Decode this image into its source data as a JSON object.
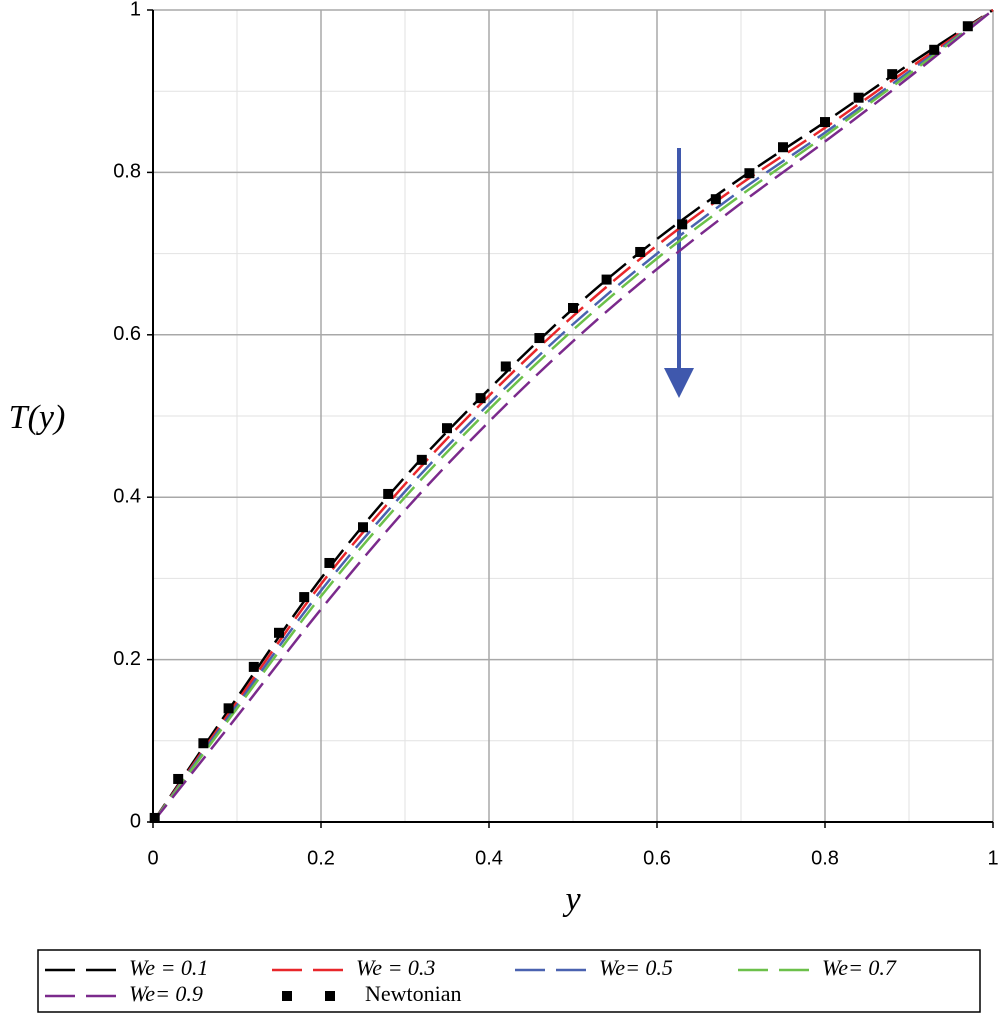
{
  "chart_data": {
    "type": "line",
    "xlabel": "y",
    "ylabel": "T(y)",
    "xlim": [
      0,
      1
    ],
    "ylim": [
      0,
      1
    ],
    "xticks": [
      0,
      0.2,
      0.4,
      0.6,
      0.8,
      1
    ],
    "yticks": [
      0,
      0.2,
      0.4,
      0.6,
      0.8,
      1
    ],
    "xminor": [
      0.1,
      0.3,
      0.5,
      0.7,
      0.9
    ],
    "yminor": [
      0.1,
      0.3,
      0.5,
      0.7,
      0.9
    ],
    "grid": true,
    "legend": "bottom",
    "series": [
      {
        "name": "We = 0.1",
        "color": "#000000",
        "dash": true,
        "x": [
          0,
          0.1,
          0.2,
          0.3,
          0.4,
          0.5,
          0.6,
          0.7,
          0.8,
          0.9,
          1
        ],
        "values": [
          0,
          0.153,
          0.3,
          0.425,
          0.533,
          0.632,
          0.718,
          0.793,
          0.862,
          0.933,
          1
        ]
      },
      {
        "name": "We = 0.3",
        "color": "#e8262a",
        "dash": true,
        "x": [
          0,
          0.1,
          0.2,
          0.3,
          0.4,
          0.5,
          0.6,
          0.7,
          0.8,
          0.9,
          1
        ],
        "values": [
          0,
          0.148,
          0.293,
          0.416,
          0.525,
          0.623,
          0.71,
          0.786,
          0.855,
          0.928,
          1
        ]
      },
      {
        "name": "We= 0.5",
        "color": "#4a62b0",
        "dash": true,
        "x": [
          0,
          0.1,
          0.2,
          0.3,
          0.4,
          0.5,
          0.6,
          0.7,
          0.8,
          0.9,
          1
        ],
        "values": [
          0,
          0.144,
          0.285,
          0.407,
          0.515,
          0.613,
          0.7,
          0.778,
          0.849,
          0.924,
          1
        ]
      },
      {
        "name": "We= 0.7",
        "color": "#6cc04a",
        "dash": true,
        "x": [
          0,
          0.1,
          0.2,
          0.3,
          0.4,
          0.5,
          0.6,
          0.7,
          0.8,
          0.9,
          1
        ],
        "values": [
          0,
          0.14,
          0.278,
          0.4,
          0.508,
          0.606,
          0.694,
          0.772,
          0.845,
          0.921,
          1
        ]
      },
      {
        "name": "We= 0.9",
        "color": "#7b2a8c",
        "dash": true,
        "x": [
          0,
          0.1,
          0.2,
          0.3,
          0.4,
          0.5,
          0.6,
          0.7,
          0.8,
          0.9,
          1
        ],
        "values": [
          0,
          0.13,
          0.262,
          0.384,
          0.493,
          0.592,
          0.681,
          0.762,
          0.838,
          0.917,
          1
        ]
      },
      {
        "name": "Newtonian",
        "color": "#000000",
        "marker": "square",
        "x": [
          0.002,
          0.03,
          0.06,
          0.09,
          0.12,
          0.15,
          0.18,
          0.21,
          0.25,
          0.28,
          0.32,
          0.35,
          0.39,
          0.42,
          0.46,
          0.5,
          0.54,
          0.58,
          0.63,
          0.67,
          0.71,
          0.75,
          0.8,
          0.84,
          0.88,
          0.93,
          0.97
        ],
        "values": [
          0.005,
          0.053,
          0.097,
          0.14,
          0.191,
          0.233,
          0.277,
          0.319,
          0.363,
          0.404,
          0.446,
          0.485,
          0.522,
          0.561,
          0.596,
          0.633,
          0.668,
          0.702,
          0.736,
          0.767,
          0.799,
          0.831,
          0.862,
          0.892,
          0.921,
          0.951,
          0.98
        ]
      }
    ]
  }
}
